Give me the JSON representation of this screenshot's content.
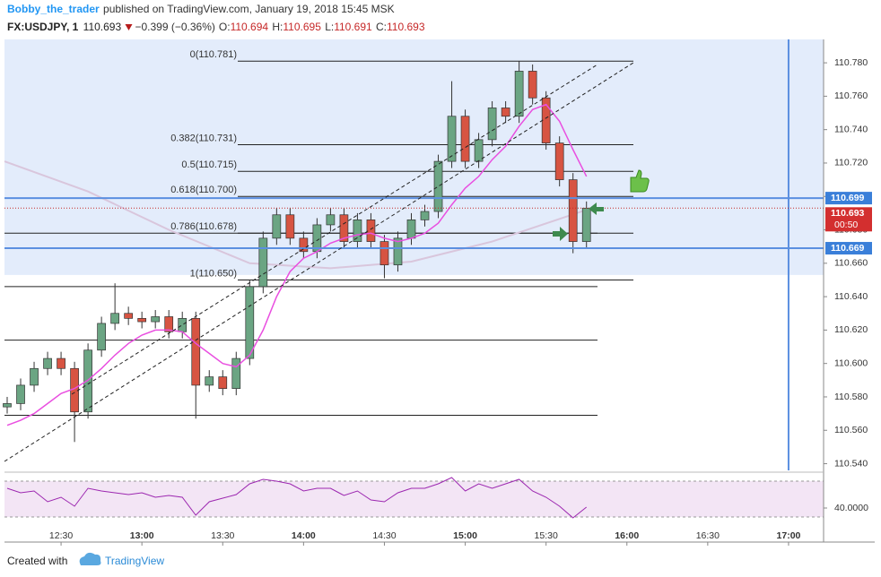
{
  "header": {
    "user": "Bobby_the_trader",
    "published": "published on TradingView.com, January 19, 2018 15:45 MSK",
    "symbol": "FX:USDJPY, 1",
    "last": "110.693",
    "change": "−0.399 (−0.36%)",
    "ohlc": [
      {
        "label": "O:",
        "value": "110.694"
      },
      {
        "label": "H:",
        "value": "110.695"
      },
      {
        "label": "L:",
        "value": "110.691"
      },
      {
        "label": "C:",
        "value": "110.693"
      }
    ]
  },
  "footer": {
    "created": "Created with",
    "brand": "TradingView"
  },
  "chart_data": {
    "type": "candlestick",
    "x": [
      "12:10",
      "12:15",
      "12:20",
      "12:25",
      "12:30",
      "12:35",
      "12:40",
      "12:45",
      "12:50",
      "12:55",
      "13:00",
      "13:05",
      "13:10",
      "13:15",
      "13:20",
      "13:25",
      "13:30",
      "13:35",
      "13:40",
      "13:45",
      "13:50",
      "13:55",
      "14:00",
      "14:05",
      "14:10",
      "14:15",
      "14:20",
      "14:25",
      "14:30",
      "14:35",
      "14:40",
      "14:45",
      "14:50",
      "14:55",
      "15:00",
      "15:05",
      "15:10",
      "15:15",
      "15:20",
      "15:25",
      "15:30",
      "15:35",
      "15:40",
      "15:45"
    ],
    "open": [
      110.574,
      110.576,
      110.587,
      110.597,
      110.603,
      110.597,
      110.571,
      110.608,
      110.624,
      110.63,
      110.627,
      110.625,
      110.628,
      110.619,
      110.627,
      110.587,
      110.592,
      110.585,
      110.603,
      110.646,
      110.675,
      110.689,
      110.675,
      110.667,
      110.683,
      110.689,
      110.673,
      110.686,
      110.673,
      110.659,
      110.675,
      110.686,
      110.691,
      110.721,
      110.748,
      110.721,
      110.734,
      110.753,
      110.748,
      110.775,
      110.759,
      110.732,
      110.71,
      110.673
    ],
    "high": [
      110.58,
      110.591,
      110.601,
      110.607,
      110.607,
      110.601,
      110.612,
      110.628,
      110.648,
      110.634,
      110.631,
      110.632,
      110.632,
      110.631,
      110.631,
      110.596,
      110.596,
      110.607,
      110.65,
      110.679,
      110.693,
      110.693,
      110.679,
      110.687,
      110.693,
      110.693,
      110.69,
      110.69,
      110.677,
      110.679,
      110.69,
      110.695,
      110.725,
      110.769,
      110.752,
      110.738,
      110.757,
      110.757,
      110.781,
      110.779,
      110.763,
      110.736,
      110.714,
      110.697
    ],
    "low": [
      110.57,
      110.572,
      110.583,
      110.593,
      110.593,
      110.553,
      110.567,
      110.604,
      110.62,
      110.623,
      110.621,
      110.621,
      110.615,
      110.615,
      110.567,
      110.583,
      110.581,
      110.581,
      110.599,
      110.642,
      110.671,
      110.671,
      110.663,
      110.663,
      110.679,
      110.669,
      110.669,
      110.669,
      110.651,
      110.655,
      110.671,
      110.682,
      110.687,
      110.717,
      110.717,
      110.717,
      110.73,
      110.744,
      110.744,
      110.755,
      110.728,
      110.706,
      110.666,
      110.669
    ],
    "close": [
      110.576,
      110.587,
      110.597,
      110.603,
      110.597,
      110.571,
      110.608,
      110.624,
      110.63,
      110.627,
      110.625,
      110.628,
      110.619,
      110.627,
      110.587,
      110.592,
      110.585,
      110.603,
      110.646,
      110.675,
      110.689,
      110.675,
      110.667,
      110.683,
      110.689,
      110.673,
      110.686,
      110.673,
      110.659,
      110.675,
      110.686,
      110.691,
      110.721,
      110.748,
      110.721,
      110.734,
      110.753,
      110.748,
      110.775,
      110.759,
      110.732,
      110.71,
      110.673,
      110.693
    ],
    "up_color": "#6ba583",
    "down_color": "#d75442",
    "ma": {
      "color": "#e94fe0",
      "values": [
        110.563,
        110.566,
        110.57,
        110.576,
        110.582,
        110.585,
        110.59,
        110.597,
        110.605,
        110.612,
        110.617,
        110.62,
        110.62,
        110.619,
        110.612,
        110.606,
        110.6,
        110.598,
        110.605,
        110.62,
        110.64,
        110.655,
        110.663,
        110.667,
        110.672,
        110.675,
        110.677,
        110.678,
        110.675,
        110.673,
        110.675,
        110.678,
        110.684,
        110.695,
        110.705,
        110.712,
        110.722,
        110.73,
        110.742,
        110.752,
        110.755,
        110.745,
        110.728,
        110.712
      ]
    },
    "ma_slow": {
      "color": "#d9c6dc",
      "x": [
        "12:09",
        "12:40",
        "13:10",
        "13:40",
        "14:10",
        "14:40",
        "15:10",
        "15:45"
      ],
      "values": [
        110.721,
        110.703,
        110.68,
        110.66,
        110.657,
        110.661,
        110.673,
        110.692
      ]
    },
    "xlim": [
      "12:09",
      "17:13"
    ],
    "xticks": [
      "12:30",
      "13:00",
      "13:30",
      "14:00",
      "14:30",
      "15:00",
      "15:30",
      "16:00",
      "16:30",
      "17:00"
    ],
    "ylim": [
      110.536,
      110.794
    ],
    "yticks": [
      {
        "value": 110.54,
        "label": "110.540"
      },
      {
        "value": 110.56,
        "label": "110.560"
      },
      {
        "value": 110.58,
        "label": "110.580"
      },
      {
        "value": 110.6,
        "label": "110.600"
      },
      {
        "value": 110.62,
        "label": "110.620"
      },
      {
        "value": 110.64,
        "label": "110.640"
      },
      {
        "value": 110.66,
        "label": "110.660"
      },
      {
        "value": 110.68,
        "label": "110.680"
      },
      {
        "value": 110.7,
        "label": "110.700"
      },
      {
        "value": 110.72,
        "label": "110.720"
      },
      {
        "value": 110.74,
        "label": "110.740"
      },
      {
        "value": 110.76,
        "label": "110.760"
      },
      {
        "value": 110.78,
        "label": "110.780"
      }
    ],
    "zone_bottom": 110.653,
    "fib": [
      {
        "label": "0(110.781)",
        "value": 110.781
      },
      {
        "label": "0.382(110.731)",
        "value": 110.731
      },
      {
        "label": "0.5(110.715)",
        "value": 110.715
      },
      {
        "label": "0.618(110.700)",
        "value": 110.7
      },
      {
        "label": "0.786(110.678)",
        "value": 110.678
      },
      {
        "label": "1(110.650)",
        "value": 110.65
      }
    ],
    "hlines": [
      110.678,
      110.646,
      110.614,
      110.569
    ],
    "blue_lines": [
      {
        "value": 110.699,
        "label": "110.699"
      },
      {
        "value": 110.669,
        "label": "110.669"
      }
    ],
    "last_price": {
      "value": 110.693,
      "label": "110.693"
    },
    "countdown": "00:50",
    "vline": "17:00",
    "rsi": {
      "color": "#9c27b0",
      "ylim": [
        4,
        80
      ],
      "bands": [
        70,
        30
      ],
      "yticks": [
        {
          "value": 40,
          "label": "40.0000"
        }
      ],
      "values": [
        62,
        57,
        59,
        47,
        52,
        42,
        62,
        59,
        57,
        55,
        57,
        52,
        54,
        52,
        32,
        47,
        51,
        55,
        67,
        72,
        70,
        67,
        59,
        62,
        62,
        54,
        59,
        49,
        47,
        57,
        62,
        62,
        67,
        74,
        59,
        67,
        62,
        67,
        72,
        59,
        52,
        42,
        29,
        41
      ]
    }
  }
}
